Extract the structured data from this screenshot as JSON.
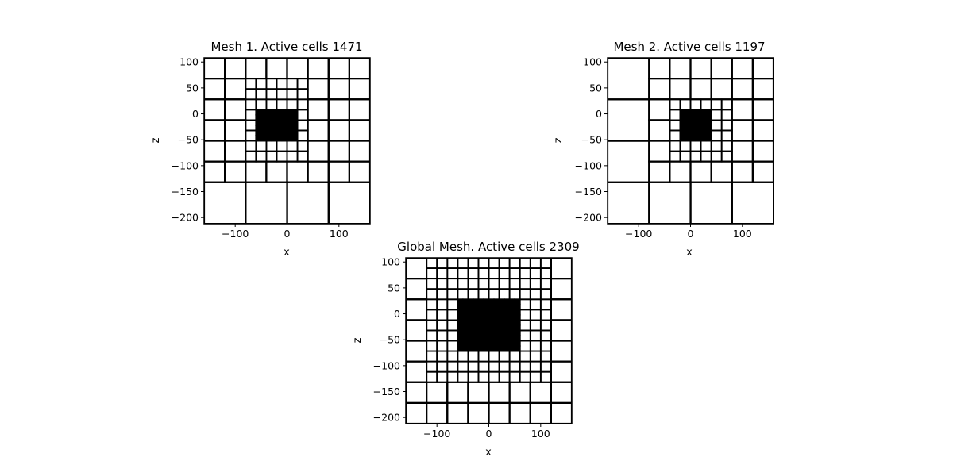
{
  "chart_data": [
    {
      "type": "mesh",
      "title": "Mesh 1. Active cells 1471",
      "xlabel": "x",
      "ylabel": "z",
      "xlim": [
        -160,
        160
      ],
      "ylim": [
        -212,
        108
      ],
      "xticks": [
        -100,
        0,
        100
      ],
      "yticks": [
        100,
        50,
        0,
        -50,
        -100,
        -150,
        -200
      ],
      "grid": false,
      "refinement_center": [
        -20,
        -20
      ],
      "refinement_scale": 1.0
    },
    {
      "type": "mesh",
      "title": "Mesh 2. Active cells 1197",
      "xlabel": "x",
      "ylabel": "z",
      "xlim": [
        -160,
        160
      ],
      "ylim": [
        -212,
        108
      ],
      "xticks": [
        -100,
        0,
        100
      ],
      "yticks": [
        100,
        50,
        0,
        -50,
        -100,
        -150,
        -200
      ],
      "grid": false,
      "refinement_center": [
        15,
        -15
      ],
      "refinement_scale": 0.8
    },
    {
      "type": "mesh",
      "title": "Global Mesh. Active cells 2309",
      "xlabel": "x",
      "ylabel": "z",
      "xlim": [
        -160,
        160
      ],
      "ylim": [
        -212,
        108
      ],
      "xticks": [
        -100,
        0,
        100
      ],
      "yticks": [
        100,
        50,
        0,
        -50,
        -100,
        -150,
        -200
      ],
      "grid": false,
      "refinement_center": [
        0,
        -15
      ],
      "refinement_scale": 1.6
    }
  ]
}
